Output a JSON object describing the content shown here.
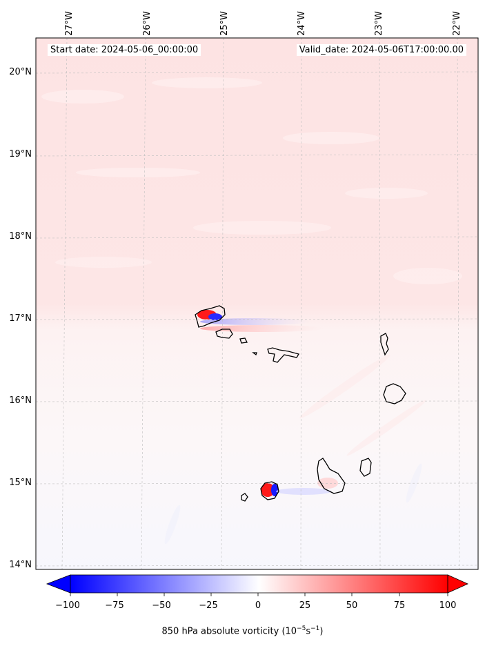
{
  "map": {
    "start_date_label": "Start date: 2024-05-06_00:00:00",
    "valid_date_label": "Valid_date: 2024-05-06T17:00:00.00",
    "lon_labels": [
      "27°W",
      "26°W",
      "25°W",
      "24°W",
      "23°W",
      "22°W"
    ],
    "lat_labels": [
      "20°N",
      "19°N",
      "18°N",
      "17°N",
      "16°N",
      "15°N",
      "14°N"
    ],
    "region": "Cabo Verde islands",
    "field_colors": {
      "positive": "#ff0000",
      "negative": "#0000ff",
      "background_light_positive": "#fde8e8"
    }
  },
  "colorbar": {
    "tick_labels": [
      "−100",
      "−75",
      "−50",
      "−25",
      "0",
      "25",
      "50",
      "75",
      "100"
    ],
    "title_text": "850 hPa absolute vorticity (10",
    "title_exp1": "−5",
    "title_mid": "s",
    "title_exp2": "−1",
    "title_end": ")",
    "min": -100,
    "max": 100,
    "extend": "both",
    "colormap": "bwr"
  }
}
